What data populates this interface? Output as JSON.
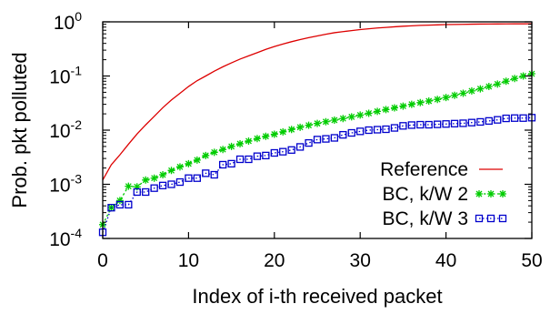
{
  "chart_data": {
    "type": "line",
    "xlabel": "Index of i-th received packet",
    "ylabel": "Prob. pkt polluted",
    "xlim": [
      0,
      50
    ],
    "ylim": [
      0.0001,
      1
    ],
    "yscale": "log",
    "grid": false,
    "legend_position": "bottom-right",
    "x_ticks": [
      "0",
      "10",
      "20",
      "30",
      "40",
      "50"
    ],
    "y_ticks": [
      {
        "base": "10",
        "exp": "-4"
      },
      {
        "base": "10",
        "exp": "-3"
      },
      {
        "base": "10",
        "exp": "-2"
      },
      {
        "base": "10",
        "exp": "-1"
      },
      {
        "base": "10",
        "exp": "0"
      }
    ],
    "series": [
      {
        "name": "Reference",
        "color": "#dd0000",
        "marker": "none",
        "x": [
          0,
          1,
          2,
          3,
          4,
          5,
          6,
          7,
          8,
          9,
          10,
          11,
          12,
          13,
          14,
          15,
          16,
          17,
          18,
          19,
          20,
          21,
          22,
          23,
          24,
          25,
          26,
          27,
          28,
          29,
          30,
          31,
          32,
          33,
          34,
          35,
          36,
          37,
          38,
          39,
          40,
          41,
          42,
          43,
          44,
          45,
          46,
          47,
          48,
          49,
          50
        ],
        "y": [
          0.0012,
          0.0023,
          0.0035,
          0.0055,
          0.0085,
          0.0125,
          0.018,
          0.026,
          0.036,
          0.048,
          0.064,
          0.082,
          0.1,
          0.123,
          0.148,
          0.175,
          0.205,
          0.235,
          0.27,
          0.31,
          0.35,
          0.39,
          0.43,
          0.47,
          0.51,
          0.55,
          0.59,
          0.63,
          0.66,
          0.69,
          0.72,
          0.745,
          0.77,
          0.79,
          0.81,
          0.83,
          0.845,
          0.86,
          0.87,
          0.88,
          0.89,
          0.895,
          0.9,
          0.905,
          0.91,
          0.912,
          0.915,
          0.917,
          0.918,
          0.919,
          0.92
        ]
      },
      {
        "name": "BC, k/W 2",
        "color": "#00cc00",
        "marker": "star",
        "x": [
          0,
          1,
          2,
          3,
          4,
          5,
          6,
          7,
          8,
          9,
          10,
          11,
          12,
          13,
          14,
          15,
          16,
          17,
          18,
          19,
          20,
          21,
          22,
          23,
          24,
          25,
          26,
          27,
          28,
          29,
          30,
          31,
          32,
          33,
          34,
          35,
          36,
          37,
          38,
          39,
          40,
          41,
          42,
          43,
          44,
          45,
          46,
          47,
          48,
          49,
          50
        ],
        "y": [
          0.00018,
          0.00037,
          0.0005,
          0.00092,
          0.0009,
          0.0012,
          0.0013,
          0.0015,
          0.0018,
          0.0021,
          0.0024,
          0.0028,
          0.0034,
          0.0039,
          0.0044,
          0.005,
          0.0056,
          0.0063,
          0.007,
          0.0077,
          0.0084,
          0.0093,
          0.0103,
          0.0113,
          0.0123,
          0.0133,
          0.0143,
          0.0153,
          0.0164,
          0.0176,
          0.019,
          0.0205,
          0.0222,
          0.024,
          0.0258,
          0.0278,
          0.03,
          0.0322,
          0.0345,
          0.037,
          0.04,
          0.044,
          0.048,
          0.053,
          0.058,
          0.064,
          0.071,
          0.08,
          0.09,
          0.1,
          0.11
        ]
      },
      {
        "name": "BC, k/W 3",
        "color": "#0000cc",
        "marker": "square",
        "x": [
          0,
          1,
          2,
          3,
          4,
          5,
          6,
          7,
          8,
          9,
          10,
          11,
          12,
          13,
          14,
          15,
          16,
          17,
          18,
          19,
          20,
          21,
          22,
          23,
          24,
          25,
          26,
          27,
          28,
          29,
          30,
          31,
          32,
          33,
          34,
          35,
          36,
          37,
          38,
          39,
          40,
          41,
          42,
          43,
          44,
          45,
          46,
          47,
          48,
          49,
          50
        ],
        "y": [
          0.00013,
          0.00037,
          0.00042,
          0.00042,
          0.00072,
          0.00072,
          0.00085,
          0.00095,
          0.001,
          0.0011,
          0.0013,
          0.0013,
          0.0016,
          0.0015,
          0.0023,
          0.0024,
          0.0029,
          0.0029,
          0.0033,
          0.0034,
          0.0038,
          0.004,
          0.0043,
          0.0049,
          0.0058,
          0.0067,
          0.0069,
          0.0072,
          0.0082,
          0.0089,
          0.0095,
          0.01,
          0.0102,
          0.0104,
          0.011,
          0.012,
          0.0124,
          0.0126,
          0.0126,
          0.0128,
          0.013,
          0.0132,
          0.0134,
          0.0138,
          0.0142,
          0.0148,
          0.0155,
          0.0165,
          0.0167,
          0.0167,
          0.017
        ]
      }
    ]
  }
}
